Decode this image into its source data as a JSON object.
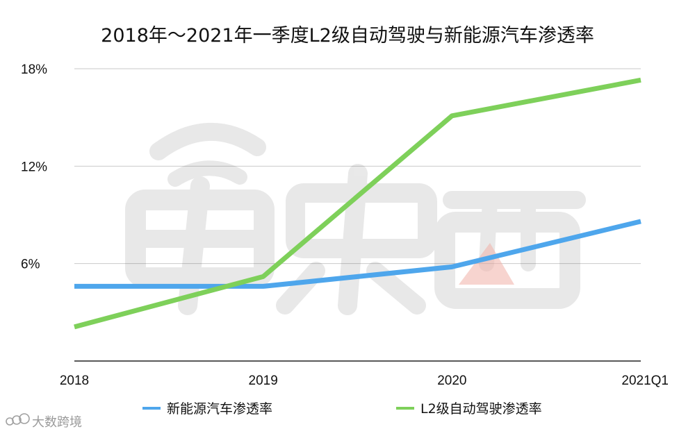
{
  "chart_data": {
    "type": "line",
    "title": "2018年～2021年一季度L2级自动驾驶与新能源汽车渗透率",
    "categories": [
      "2018",
      "2019",
      "2020",
      "2021Q1"
    ],
    "series": [
      {
        "name": "新能源汽车渗透率",
        "color": "#4ea6ec",
        "values": [
          4.6,
          4.6,
          5.8,
          8.6
        ]
      },
      {
        "name": "L2级自动驾驶渗透率",
        "color": "#7ed05a",
        "values": [
          2.1,
          5.2,
          15.1,
          17.3
        ]
      }
    ],
    "y_ticks": [
      {
        "value": 6,
        "label": "6%"
      },
      {
        "value": 12,
        "label": "12%"
      },
      {
        "value": 18,
        "label": "18%"
      }
    ],
    "ylim": [
      0,
      18
    ],
    "xlabel": "",
    "ylabel": "",
    "grid": true,
    "legend_position": "bottom"
  },
  "watermark": {
    "text": "大数跨境",
    "icon": "dashuju-logo-icon",
    "logo_icon": "chedongxi-logo-watermark"
  }
}
